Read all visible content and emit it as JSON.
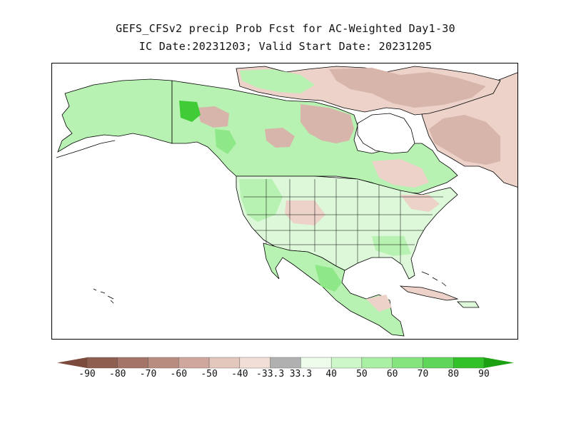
{
  "title": {
    "line1": "GEFS_CFSv2 precip Prob Fcst for AC-Weighted Day1-30",
    "line2": "IC Date:20231203; Valid Start Date: 20231205"
  },
  "colorbar": {
    "labels": [
      "-90",
      "-80",
      "-70",
      "-60",
      "-50",
      "-40",
      "-33.3",
      "33.3",
      "40",
      "50",
      "60",
      "70",
      "80",
      "90"
    ],
    "colors": [
      "#7b4a3c",
      "#8e5e50",
      "#a37467",
      "#b98c80",
      "#cfa79c",
      "#e3c6bc",
      "#f1dfd7",
      "#b0b0b0",
      "#eefcec",
      "#cdf7c9",
      "#a9efa4",
      "#86e47f",
      "#5fd657",
      "#33c12a",
      "#1aa010"
    ]
  },
  "map": {
    "region": "North America",
    "colors": {
      "dry_strong": "#b98c80",
      "dry_moderate": "#d8b5ab",
      "dry_light": "#ecd2c9",
      "wet_light": "#dcf8d8",
      "wet_moderate": "#b8f2b2",
      "wet_strong": "#8ee888",
      "wet_very_strong": "#3fcc36",
      "ocean": "#ffffff",
      "outline": "#000000"
    }
  }
}
